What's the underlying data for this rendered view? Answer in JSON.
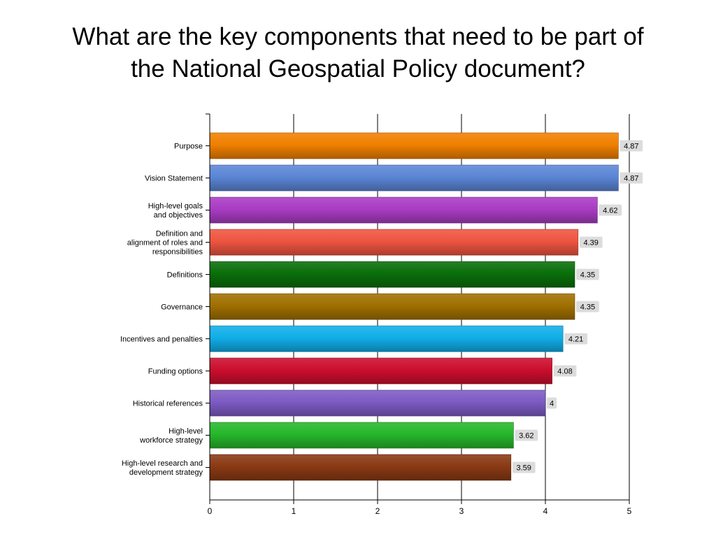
{
  "slide": {
    "title_line1": "What are the key components that need to be part of",
    "title_line2": "the National Geospatial Policy document?"
  },
  "chart_data": {
    "type": "bar",
    "orientation": "horizontal",
    "title": "",
    "xlabel": "",
    "ylabel": "",
    "xlim": [
      0,
      5
    ],
    "xticks": [
      0,
      1,
      2,
      3,
      4,
      5
    ],
    "grid": "vertical",
    "legend": "none",
    "categories": [
      [
        "Purpose"
      ],
      [
        "Vision Statement"
      ],
      [
        "High-level goals",
        "and objectives"
      ],
      [
        "Definition and",
        "alignment of roles and",
        "responsibilities"
      ],
      [
        "Definitions"
      ],
      [
        "Governance"
      ],
      [
        "Incentives and penalties"
      ],
      [
        "Funding options"
      ],
      [
        "Historical references"
      ],
      [
        "High-level",
        "workforce strategy"
      ],
      [
        "High-level research and",
        "development strategy"
      ]
    ],
    "values": [
      4.87,
      4.87,
      4.62,
      4.39,
      4.35,
      4.35,
      4.21,
      4.08,
      4,
      3.62,
      3.59
    ],
    "value_labels": [
      "4.87",
      "4.87",
      "4.62",
      "4.39",
      "4.35",
      "4.35",
      "4.21",
      "4.08",
      "4",
      "3.62",
      "3.59"
    ],
    "colors": [
      "#f08000",
      "#5b86d6",
      "#a93cc4",
      "#ee5540",
      "#0a6f0a",
      "#a07000",
      "#10aee8",
      "#cc0e2e",
      "#7d5bc4",
      "#26b72b",
      "#8a3a14"
    ]
  }
}
